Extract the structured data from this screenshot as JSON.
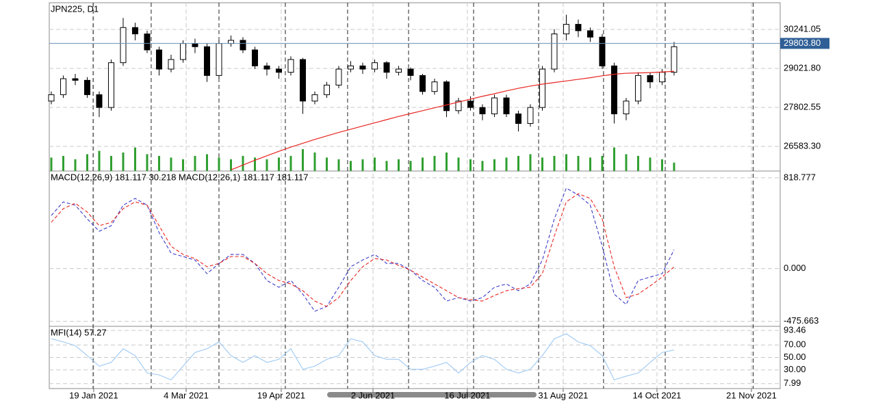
{
  "chart_data": [
    {
      "type": "candlestick",
      "title": "JPN225, D1",
      "open": [
        28000,
        28200,
        28700,
        28650,
        28200,
        27800,
        29200,
        30300,
        30100,
        29600,
        29000,
        29300,
        29800,
        29700,
        28800,
        29800,
        29900,
        29600,
        29100,
        29000,
        28900,
        29300,
        28000,
        28200,
        28500,
        29000,
        29100,
        29000,
        29200,
        28900,
        29000,
        28800,
        28300,
        28600,
        27700,
        28000,
        27800,
        27600,
        28100,
        27600,
        27300,
        27800,
        29000,
        30100,
        30400,
        30200,
        30000,
        29100,
        27600,
        28000,
        28800,
        28600,
        28900
      ],
      "high": [
        28300,
        28800,
        28850,
        28750,
        28300,
        29300,
        30600,
        30450,
        30200,
        29700,
        29450,
        29900,
        29950,
        29800,
        29900,
        30050,
        30000,
        29700,
        29200,
        29100,
        29400,
        29350,
        28300,
        28600,
        29100,
        29250,
        29200,
        29300,
        29250,
        29100,
        29050,
        28850,
        28700,
        28650,
        28100,
        28150,
        27900,
        28200,
        28200,
        27700,
        27900,
        29100,
        30250,
        30700,
        30550,
        30300,
        30100,
        29200,
        28100,
        28900,
        28900,
        29000,
        29850
      ],
      "low": [
        27900,
        28100,
        28500,
        28100,
        27500,
        27700,
        29100,
        29900,
        29500,
        28800,
        28900,
        29200,
        29500,
        28600,
        28700,
        29700,
        29500,
        29000,
        28800,
        28700,
        28800,
        27600,
        27900,
        28100,
        28400,
        28900,
        28850,
        28900,
        28700,
        28800,
        28650,
        28200,
        28200,
        27500,
        27600,
        27700,
        27400,
        27500,
        27500,
        27050,
        27200,
        27700,
        28900,
        29900,
        30000,
        29850,
        29000,
        27300,
        27400,
        27900,
        28400,
        28500,
        28800
      ],
      "close": [
        28200,
        28700,
        28650,
        28200,
        27800,
        29200,
        30300,
        30100,
        29600,
        29000,
        29300,
        29800,
        29700,
        28800,
        29800,
        29900,
        29600,
        29100,
        29000,
        28900,
        29300,
        28000,
        28200,
        28500,
        29000,
        29100,
        29000,
        29200,
        28900,
        29000,
        28800,
        28300,
        28600,
        27700,
        28000,
        27800,
        27600,
        28100,
        27600,
        27300,
        27800,
        29000,
        30100,
        30400,
        30200,
        30000,
        29100,
        27600,
        28000,
        28800,
        28600,
        28900,
        29700
      ],
      "moving_average": [
        null,
        null,
        null,
        null,
        null,
        null,
        null,
        null,
        null,
        null,
        null,
        null,
        null,
        null,
        null,
        25850,
        26000,
        26150,
        26290,
        26430,
        26560,
        26680,
        26800,
        26910,
        27020,
        27120,
        27220,
        27320,
        27420,
        27520,
        27610,
        27700,
        27790,
        27880,
        27970,
        28060,
        28150,
        28230,
        28320,
        28400,
        28470,
        28530,
        28580,
        28630,
        28680,
        28730,
        28790,
        28840,
        28870,
        28880,
        28890,
        28910,
        28930
      ],
      "ma_color": "#e8231e",
      "volume": [
        8,
        9,
        7,
        10,
        12,
        9,
        11,
        14,
        10,
        9,
        8,
        7,
        9,
        10,
        8,
        7,
        9,
        8,
        7,
        8,
        9,
        13,
        11,
        8,
        7,
        6,
        7,
        8,
        6,
        7,
        6,
        8,
        9,
        11,
        8,
        7,
        6,
        7,
        8,
        9,
        10,
        8,
        9,
        10,
        9,
        8,
        9,
        14,
        10,
        9,
        8,
        7,
        5
      ],
      "volume_ylim": [
        0,
        100
      ],
      "volume_color": "#2f9e2f",
      "current_price": {
        "value": 29803.8,
        "label": "29803.80"
      },
      "ylim": [
        25813,
        31075
      ],
      "yticks": [
        30241.05,
        {
          "value": 29021.8,
          "label": "29021.80"
        },
        27802.55,
        {
          "value": 26583.3,
          "label": "26583.30"
        }
      ],
      "xlim": [
        -0.17,
        60.86
      ],
      "xticks": [
        {
          "value": 3.54,
          "label": "19 Jan 2021"
        },
        {
          "value": 11.26,
          "label": "4 Mar 2021"
        },
        {
          "value": 19.2,
          "label": "19 Apr 2021"
        },
        {
          "value": 26.86,
          "label": "2 Jun 2021"
        },
        {
          "value": 34.74,
          "label": "16 Jul 2021"
        },
        {
          "value": 42.74,
          "label": "31 Aug 2021"
        },
        {
          "value": 50.57,
          "label": "14 Oct 2021"
        },
        {
          "value": 58.46,
          "label": "21 Nov 2021"
        }
      ],
      "separators": [
        3.49,
        8.34,
        14,
        19.54,
        24.74,
        29.83,
        35.26,
        40.69,
        46.11,
        51.26,
        58.6
      ],
      "grid": true
    },
    {
      "type": "line",
      "title": "MACD(12,26,9) 181.117 30.218 MACD(12,26,1) 181.117 181.117",
      "series": [
        {
          "color": "#3a3ac8",
          "values": [
            479,
            602,
            572,
            448,
            337,
            387,
            572,
            633,
            572,
            325,
            140,
            109,
            78,
            -45,
            47,
            128,
            128,
            47,
            -107,
            -168,
            -107,
            -230,
            -384,
            -341,
            -168,
            17,
            78,
            128,
            47,
            47,
            -14,
            -107,
            -168,
            -292,
            -261,
            -292,
            -261,
            -168,
            -138,
            -199,
            -138,
            78,
            448,
            726,
            664,
            572,
            202,
            -230,
            -323,
            -107,
            -76,
            -45,
            171
          ]
        },
        {
          "color": "#e8231e",
          "values": [
            417,
            541,
            590,
            510,
            387,
            417,
            541,
            602,
            572,
            387,
            202,
            128,
            91,
            17,
            47,
            109,
            109,
            47,
            -45,
            -107,
            -138,
            -199,
            -292,
            -341,
            -261,
            -107,
            17,
            91,
            78,
            29,
            -14,
            -76,
            -138,
            -199,
            -261,
            -280,
            -292,
            -242,
            -199,
            -180,
            -168,
            -45,
            294,
            602,
            676,
            633,
            448,
            17,
            -261,
            -230,
            -156,
            -76,
            17
          ]
        }
      ],
      "ylim": [
        -520,
        880
      ],
      "yticks": [
        818.777,
        {
          "value": 0,
          "label": "0.000"
        },
        -475.663
      ],
      "grid": true
    },
    {
      "type": "line",
      "title": "MFI(14) 57.27",
      "series": [
        {
          "color": "#9cc8f2",
          "values": [
            80,
            75,
            69,
            53,
            36,
            42,
            64,
            53,
            25,
            22,
            14,
            36,
            58,
            64,
            75,
            53,
            42,
            53,
            42,
            47,
            64,
            31,
            36,
            47,
            53,
            80,
            75,
            53,
            47,
            47,
            31,
            31,
            36,
            42,
            25,
            42,
            53,
            47,
            31,
            25,
            31,
            53,
            80,
            88,
            75,
            69,
            53,
            14,
            20,
            25,
            42,
            58,
            62
          ]
        }
      ],
      "ylim": [
        0,
        100
      ],
      "yticks": [
        93.46,
        {
          "value": 70,
          "label": "70.00"
        },
        {
          "value": 50,
          "label": "50.00"
        },
        {
          "value": 30,
          "label": "30.00"
        },
        7.99
      ],
      "grid": true
    }
  ]
}
